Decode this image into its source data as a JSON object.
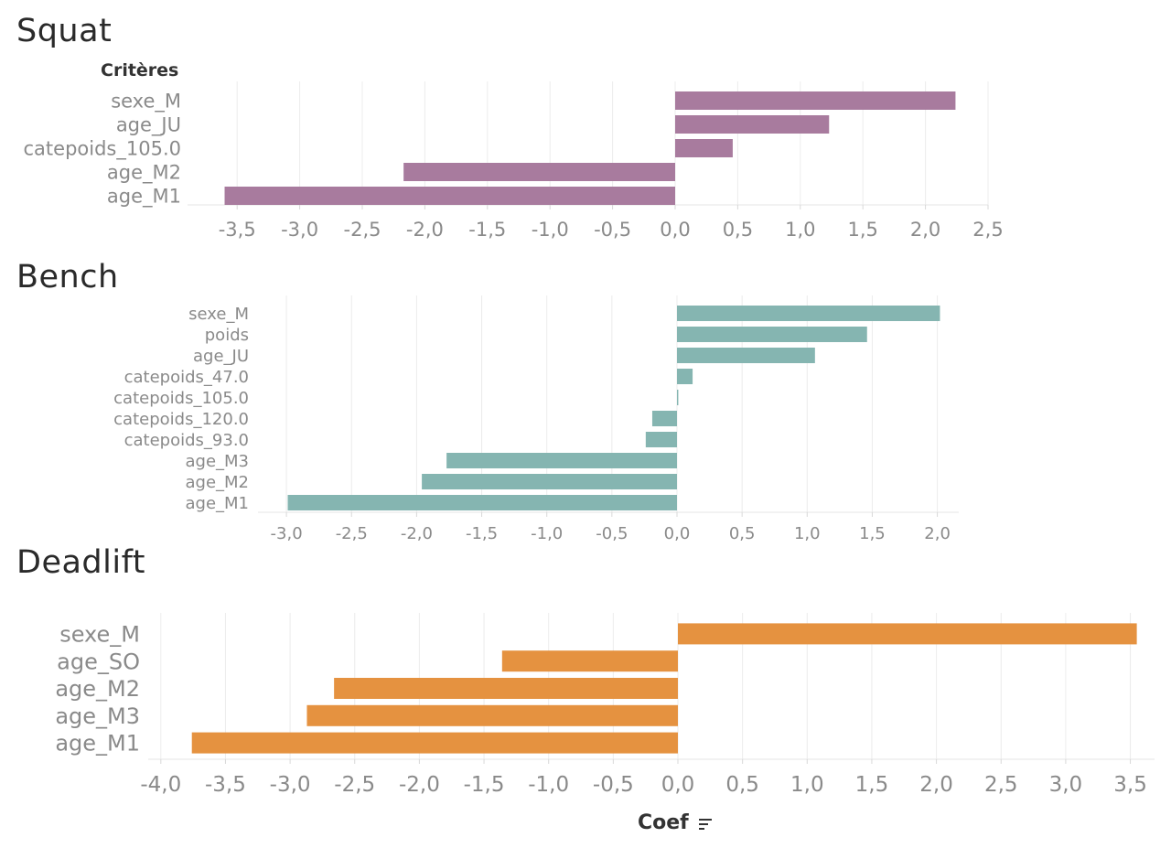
{
  "axis_title": "Coef",
  "field_header": "Critères",
  "chart_data": [
    {
      "type": "bar",
      "orientation": "horizontal",
      "title": "Squat",
      "color": "#A87B9E",
      "categories": [
        "sexe_M",
        "age_JU",
        "catepoids_105.0",
        "age_M2",
        "age_M1"
      ],
      "values": [
        2.24,
        1.23,
        0.46,
        -2.17,
        -3.6
      ],
      "ticks": [
        "-3,5",
        "-3,0",
        "-2,5",
        "-2,0",
        "-1,5",
        "-1,0",
        "-0,5",
        "0,0",
        "0,5",
        "1,0",
        "1,5",
        "2,0",
        "2,5"
      ],
      "xlim": [
        -3.7,
        2.5
      ],
      "grid": true
    },
    {
      "type": "bar",
      "orientation": "horizontal",
      "title": "Bench",
      "color": "#85B5B1",
      "categories": [
        "sexe_M",
        "poids",
        "age_JU",
        "catepoids_47.0",
        "catepoids_105.0",
        "catepoids_120.0",
        "catepoids_93.0",
        "age_M3",
        "age_M2",
        "age_M1"
      ],
      "values": [
        2.02,
        1.46,
        1.06,
        0.12,
        0.01,
        -0.19,
        -0.24,
        -1.77,
        -1.96,
        -2.99
      ],
      "ticks": [
        "-3,0",
        "-2,5",
        "-2,0",
        "-1,5",
        "-1,0",
        "-0,5",
        "0,0",
        "0,5",
        "1,0",
        "1,5",
        "2,0"
      ],
      "xlim": [
        -3.0,
        2.0
      ],
      "grid": true
    },
    {
      "type": "bar",
      "orientation": "horizontal",
      "title": "Deadlift",
      "color": "#E59240",
      "categories": [
        "sexe_M",
        "age_SO",
        "age_M2",
        "age_M3",
        "age_M1"
      ],
      "values": [
        3.55,
        -1.36,
        -2.66,
        -2.87,
        -3.76
      ],
      "ticks": [
        "-4,0",
        "-3,5",
        "-3,0",
        "-2,5",
        "-2,0",
        "-1,5",
        "-1,0",
        "-0,5",
        "0,0",
        "0,5",
        "1,0",
        "1,5",
        "2,0",
        "2,5",
        "3,0",
        "3,5"
      ],
      "xlim": [
        -4.0,
        3.5
      ],
      "grid": true
    }
  ]
}
